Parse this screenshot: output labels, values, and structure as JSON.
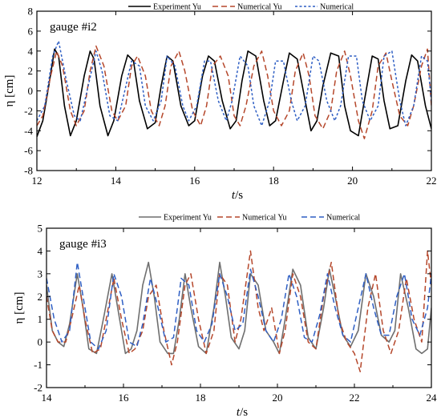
{
  "chart_data": [
    {
      "type": "line",
      "annotation": "gauge #i2",
      "xlabel_italic": "t",
      "xlabel_unit": "/s",
      "ylabel": "η [cm]",
      "xlim": [
        12,
        22
      ],
      "ylim": [
        -8,
        8
      ],
      "xticks": [
        "12",
        "14",
        "16",
        "18",
        "20",
        "22"
      ],
      "yticks": [
        "-8",
        "-6",
        "-4",
        "-2",
        "0",
        "2",
        "4",
        "6",
        "8"
      ],
      "legend_position": "top-center",
      "series": [
        {
          "name": "Experiment Yu",
          "color": "#000000",
          "dash": "solid",
          "x": [
            12.0,
            12.15,
            12.3,
            12.45,
            12.55,
            12.7,
            12.85,
            13.0,
            13.2,
            13.35,
            13.45,
            13.6,
            13.8,
            13.95,
            14.15,
            14.3,
            14.45,
            14.6,
            14.8,
            15.0,
            15.15,
            15.3,
            15.45,
            15.65,
            15.85,
            16.0,
            16.2,
            16.35,
            16.5,
            16.7,
            16.9,
            17.05,
            17.2,
            17.35,
            17.55,
            17.75,
            17.9,
            18.05,
            18.25,
            18.4,
            18.6,
            18.8,
            18.95,
            19.1,
            19.25,
            19.45,
            19.65,
            19.8,
            19.95,
            20.15,
            20.3,
            20.5,
            20.65,
            20.8,
            20.95,
            21.15,
            21.35,
            21.5,
            21.65,
            21.85,
            22.0
          ],
          "y": [
            -4.6,
            -3.0,
            0.5,
            4.2,
            3.5,
            -1.5,
            -4.5,
            -3.0,
            1.5,
            4.0,
            3.2,
            -1.5,
            -4.5,
            -3.0,
            1.5,
            3.6,
            3.0,
            -1.0,
            -3.8,
            -3.2,
            0.5,
            3.5,
            3.0,
            -1.5,
            -3.5,
            -3.0,
            1.5,
            3.5,
            3.0,
            -1.0,
            -3.8,
            -3.0,
            1.0,
            4.0,
            3.5,
            -1.0,
            -3.5,
            -3.0,
            1.0,
            3.8,
            3.2,
            -1.0,
            -4.0,
            -3.0,
            0.5,
            3.8,
            3.5,
            -1.5,
            -4.0,
            -4.5,
            -1.0,
            3.5,
            3.2,
            -1.0,
            -3.8,
            -3.5,
            1.0,
            3.6,
            3.0,
            -1.5,
            -3.8
          ]
        },
        {
          "name": "Numerical Yu",
          "color": "#b5472b",
          "dash": "dashed",
          "x": [
            12.0,
            12.15,
            12.35,
            12.5,
            12.65,
            12.85,
            13.0,
            13.2,
            13.35,
            13.5,
            13.7,
            13.9,
            14.05,
            14.25,
            14.4,
            14.55,
            14.75,
            14.9,
            15.1,
            15.25,
            15.4,
            15.6,
            15.75,
            15.95,
            16.15,
            16.3,
            16.45,
            16.65,
            16.85,
            17.0,
            17.15,
            17.3,
            17.5,
            17.7,
            17.85,
            18.0,
            18.2,
            18.4,
            18.55,
            18.75,
            18.9,
            19.05,
            19.25,
            19.45,
            19.6,
            19.8,
            19.95,
            20.15,
            20.3,
            20.5,
            20.65,
            20.85,
            21.0,
            21.2,
            21.4,
            21.55,
            21.75,
            21.9,
            22.0
          ],
          "y": [
            -3.5,
            -2.5,
            1.5,
            4.0,
            2.5,
            -2.0,
            -3.5,
            -2.0,
            2.0,
            4.5,
            2.5,
            -2.0,
            -3.0,
            -1.5,
            2.5,
            3.5,
            1.5,
            -2.0,
            -3.5,
            -1.5,
            2.5,
            4.0,
            2.0,
            -2.0,
            -3.5,
            -1.5,
            2.5,
            3.5,
            1.5,
            -2.5,
            -3.5,
            -1.5,
            2.5,
            4.0,
            1.5,
            -2.0,
            -3.5,
            -2.0,
            2.0,
            3.8,
            1.5,
            -2.5,
            -3.8,
            -2.0,
            2.0,
            4.0,
            1.5,
            -3.0,
            -4.8,
            -2.0,
            2.5,
            3.8,
            1.0,
            -2.5,
            -3.5,
            -1.5,
            2.5,
            4.2,
            -1.5
          ]
        },
        {
          "name": "Numerical",
          "color": "#2f5fc4",
          "dash": "dotted",
          "x": [
            12.0,
            12.2,
            12.4,
            12.55,
            12.75,
            12.95,
            13.1,
            13.3,
            13.5,
            13.65,
            13.85,
            14.05,
            14.2,
            14.4,
            14.6,
            14.75,
            14.95,
            15.15,
            15.3,
            15.5,
            15.7,
            15.85,
            16.05,
            16.25,
            16.4,
            16.6,
            16.8,
            16.95,
            17.15,
            17.35,
            17.5,
            17.7,
            17.9,
            18.05,
            18.25,
            18.45,
            18.6,
            18.8,
            19.0,
            19.15,
            19.35,
            19.55,
            19.7,
            19.9,
            20.1,
            20.25,
            20.45,
            20.65,
            20.8,
            21.0,
            21.2,
            21.35,
            21.55,
            21.75,
            21.9,
            22.0
          ],
          "y": [
            -3.0,
            -1.5,
            3.5,
            5.0,
            1.0,
            -2.5,
            -3.0,
            0.5,
            4.0,
            2.0,
            -2.5,
            -3.0,
            -0.5,
            3.0,
            2.5,
            -1.5,
            -3.0,
            -1.0,
            3.5,
            2.5,
            -1.5,
            -3.0,
            -1.5,
            3.0,
            3.0,
            -1.0,
            -3.0,
            -1.0,
            3.5,
            2.5,
            -1.5,
            -3.5,
            -1.0,
            3.0,
            3.0,
            -1.0,
            -3.0,
            -1.5,
            3.5,
            3.0,
            -1.0,
            -3.0,
            -1.5,
            3.5,
            3.5,
            -1.0,
            -3.0,
            -1.5,
            3.5,
            4.0,
            -1.0,
            -3.5,
            -1.5,
            3.5,
            3.0,
            -1.0
          ]
        }
      ]
    },
    {
      "type": "line",
      "annotation": "gauge #i3",
      "xlabel_italic": "t",
      "xlabel_unit": "/s",
      "ylabel": "η [cm]",
      "xlim": [
        14,
        24
      ],
      "ylim": [
        -2,
        5
      ],
      "xticks": [
        "14",
        "16",
        "18",
        "20",
        "22",
        "24"
      ],
      "yticks": [
        "-2",
        "-1",
        "0",
        "1",
        "2",
        "3",
        "4",
        "5"
      ],
      "legend_position": "top-center",
      "series": [
        {
          "name": "Experiment Yu",
          "color": "#6f6f6f",
          "dash": "solid",
          "x": [
            14.0,
            14.15,
            14.3,
            14.45,
            14.6,
            14.8,
            14.95,
            15.1,
            15.3,
            15.5,
            15.7,
            15.9,
            16.05,
            16.2,
            16.35,
            16.5,
            16.65,
            16.8,
            16.95,
            17.15,
            17.3,
            17.45,
            17.6,
            17.75,
            17.95,
            18.15,
            18.35,
            18.5,
            18.65,
            18.8,
            19.0,
            19.15,
            19.3,
            19.5,
            19.7,
            19.9,
            20.05,
            20.2,
            20.4,
            20.6,
            20.8,
            21.0,
            21.2,
            21.35,
            21.5,
            21.7,
            21.9,
            22.1,
            22.3,
            22.5,
            22.7,
            22.9,
            23.05,
            23.2,
            23.4,
            23.6,
            23.75,
            23.9,
            24.0
          ],
          "y": [
            2.5,
            0.5,
            0.0,
            -0.2,
            0.8,
            3.0,
            1.5,
            -0.3,
            -0.5,
            1.2,
            3.0,
            1.0,
            -0.5,
            -0.3,
            0.5,
            2.5,
            3.5,
            2.0,
            0.0,
            -0.5,
            -0.5,
            1.0,
            3.0,
            1.5,
            -0.2,
            -0.5,
            1.5,
            3.5,
            2.0,
            0.2,
            -0.3,
            0.5,
            3.0,
            2.5,
            0.5,
            0.0,
            -0.5,
            1.0,
            3.2,
            2.5,
            0.2,
            -0.3,
            1.5,
            3.2,
            2.0,
            0.3,
            -0.2,
            0.5,
            3.0,
            2.0,
            0.3,
            0.0,
            0.5,
            3.0,
            1.5,
            -0.3,
            -0.5,
            -0.3,
            1.5
          ]
        },
        {
          "name": "Numerical Yu",
          "color": "#b5472b",
          "dash": "dashed",
          "x": [
            14.0,
            14.15,
            14.3,
            14.5,
            14.65,
            14.85,
            15.0,
            15.2,
            15.4,
            15.55,
            15.75,
            15.95,
            16.15,
            16.3,
            16.5,
            16.65,
            16.85,
            17.05,
            17.25,
            17.4,
            17.6,
            17.75,
            17.95,
            18.15,
            18.35,
            18.5,
            18.7,
            18.9,
            19.05,
            19.3,
            19.5,
            19.65,
            19.85,
            20.05,
            20.2,
            20.4,
            20.6,
            20.8,
            21.0,
            21.2,
            21.4,
            21.6,
            21.8,
            22.0,
            22.15,
            22.35,
            22.55,
            22.75,
            22.95,
            23.15,
            23.35,
            23.55,
            23.75,
            23.9,
            24.0
          ],
          "y": [
            2.0,
            0.5,
            0.0,
            0.0,
            1.0,
            2.5,
            1.0,
            -0.5,
            -0.3,
            1.0,
            2.8,
            1.0,
            -0.5,
            -0.3,
            0.5,
            2.0,
            2.5,
            0.5,
            -1.0,
            0.0,
            2.5,
            3.0,
            1.0,
            -0.5,
            0.5,
            3.0,
            2.5,
            0.0,
            1.0,
            4.0,
            1.5,
            0.5,
            1.5,
            -0.5,
            0.5,
            3.0,
            2.0,
            0.0,
            -0.3,
            2.0,
            3.5,
            1.0,
            0.0,
            -0.5,
            -1.3,
            1.5,
            3.0,
            0.5,
            -0.5,
            0.5,
            2.8,
            1.0,
            0.0,
            4.0,
            2.5
          ]
        },
        {
          "name": "Numerical",
          "color": "#2f5fc4",
          "dash": "dashed",
          "x": [
            14.0,
            14.2,
            14.4,
            14.6,
            14.8,
            14.95,
            15.15,
            15.35,
            15.55,
            15.75,
            15.95,
            16.15,
            16.35,
            16.5,
            16.7,
            16.9,
            17.1,
            17.3,
            17.5,
            17.7,
            17.9,
            18.1,
            18.3,
            18.5,
            18.7,
            18.9,
            19.1,
            19.3,
            19.5,
            19.7,
            19.9,
            20.1,
            20.3,
            20.5,
            20.7,
            20.9,
            21.1,
            21.3,
            21.5,
            21.7,
            21.9,
            22.1,
            22.3,
            22.5,
            22.7,
            22.9,
            23.1,
            23.3,
            23.5,
            23.7,
            23.9,
            24.0
          ],
          "y": [
            2.8,
            1.0,
            0.0,
            0.5,
            3.5,
            2.0,
            0.0,
            -0.3,
            0.5,
            3.0,
            2.0,
            0.0,
            -0.2,
            0.8,
            2.8,
            1.5,
            0.0,
            0.2,
            2.8,
            2.5,
            0.5,
            0.0,
            0.8,
            3.0,
            2.0,
            0.5,
            0.8,
            3.2,
            2.0,
            0.5,
            0.0,
            1.0,
            3.0,
            2.0,
            0.2,
            0.0,
            1.2,
            3.0,
            1.5,
            0.3,
            0.0,
            1.5,
            3.0,
            1.5,
            0.3,
            0.3,
            2.0,
            3.0,
            1.0,
            0.3,
            1.5,
            3.0
          ]
        }
      ]
    }
  ]
}
